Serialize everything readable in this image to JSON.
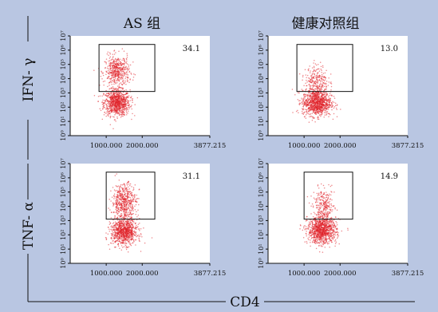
{
  "columns": [
    "AS 组",
    "健康对照组"
  ],
  "rows": [
    "IFN- γ",
    "TNF- α"
  ],
  "x_axis_label": "CD4",
  "colors": {
    "background": "#b9c6e2",
    "plot_bg": "#ffffff",
    "dots": "#e0232a",
    "gate": "#111111"
  },
  "chart_data": [
    {
      "type": "scatter",
      "panel": "IFN-γ / AS 组",
      "x_ticks": [
        "1000.000",
        "2000.000",
        "3877.215"
      ],
      "y_ticks": [
        "10⁰",
        "10¹",
        "10²",
        "10³",
        "10⁴",
        "10⁵",
        "10⁶",
        "10⁷"
      ],
      "xlim": [
        0,
        3877.215
      ],
      "ylim_log10": [
        0,
        7
      ],
      "gate": {
        "x": [
          800,
          2350
        ],
        "y_log10": [
          3.1,
          6.4
        ]
      },
      "gate_percent": "34.1",
      "clusters": [
        {
          "x_center": 1300,
          "log10_y_center": 2.3,
          "spread_x": 180,
          "spread_y": 0.45,
          "n": 900
        },
        {
          "x_center": 1300,
          "log10_y_center": 4.5,
          "spread_x": 170,
          "spread_y": 0.55,
          "n": 500
        }
      ]
    },
    {
      "type": "scatter",
      "panel": "IFN-γ / 健康对照组",
      "x_ticks": [
        "1000.000",
        "2000.000",
        "3877.215"
      ],
      "y_ticks": [
        "10⁰",
        "10¹",
        "10²",
        "10³",
        "10⁴",
        "10⁵",
        "10⁶",
        "10⁷"
      ],
      "xlim": [
        0,
        3877.215
      ],
      "ylim_log10": [
        0,
        7
      ],
      "gate": {
        "x": [
          800,
          2350
        ],
        "y_log10": [
          3.1,
          6.4
        ]
      },
      "gate_percent": "13.0",
      "clusters": [
        {
          "x_center": 1350,
          "log10_y_center": 2.3,
          "spread_x": 200,
          "spread_y": 0.45,
          "n": 1000
        },
        {
          "x_center": 1350,
          "log10_y_center": 3.8,
          "spread_x": 160,
          "spread_y": 0.6,
          "n": 280
        }
      ]
    },
    {
      "type": "scatter",
      "panel": "TNF-α / AS 组",
      "x_ticks": [
        "1000.000",
        "2000.000",
        "3877.215"
      ],
      "y_ticks": [
        "10⁰",
        "10¹",
        "10²",
        "10³",
        "10⁴",
        "10⁵",
        "10⁶",
        "10⁷"
      ],
      "xlim": [
        0,
        3877.215
      ],
      "ylim_log10": [
        0,
        7
      ],
      "gate": {
        "x": [
          1000,
          2350
        ],
        "y_log10": [
          3.1,
          6.4
        ]
      },
      "gate_percent": "31.1",
      "clusters": [
        {
          "x_center": 1500,
          "log10_y_center": 2.2,
          "spread_x": 180,
          "spread_y": 0.45,
          "n": 900
        },
        {
          "x_center": 1500,
          "log10_y_center": 4.3,
          "spread_x": 170,
          "spread_y": 0.65,
          "n": 550
        }
      ]
    },
    {
      "type": "scatter",
      "panel": "TNF-α / 健康对照组",
      "x_ticks": [
        "1000.000",
        "2000.000",
        "3877.215"
      ],
      "y_ticks": [
        "10⁰",
        "10¹",
        "10²",
        "10³",
        "10⁴",
        "10⁵",
        "10⁶",
        "10⁷"
      ],
      "xlim": [
        0,
        3877.215
      ],
      "ylim_log10": [
        0,
        7
      ],
      "gate": {
        "x": [
          1000,
          2350
        ],
        "y_log10": [
          3.1,
          6.4
        ]
      },
      "gate_percent": "14.9",
      "clusters": [
        {
          "x_center": 1500,
          "log10_y_center": 2.3,
          "spread_x": 200,
          "spread_y": 0.45,
          "n": 1000
        },
        {
          "x_center": 1550,
          "log10_y_center": 3.9,
          "spread_x": 150,
          "spread_y": 0.65,
          "n": 300
        }
      ]
    }
  ]
}
